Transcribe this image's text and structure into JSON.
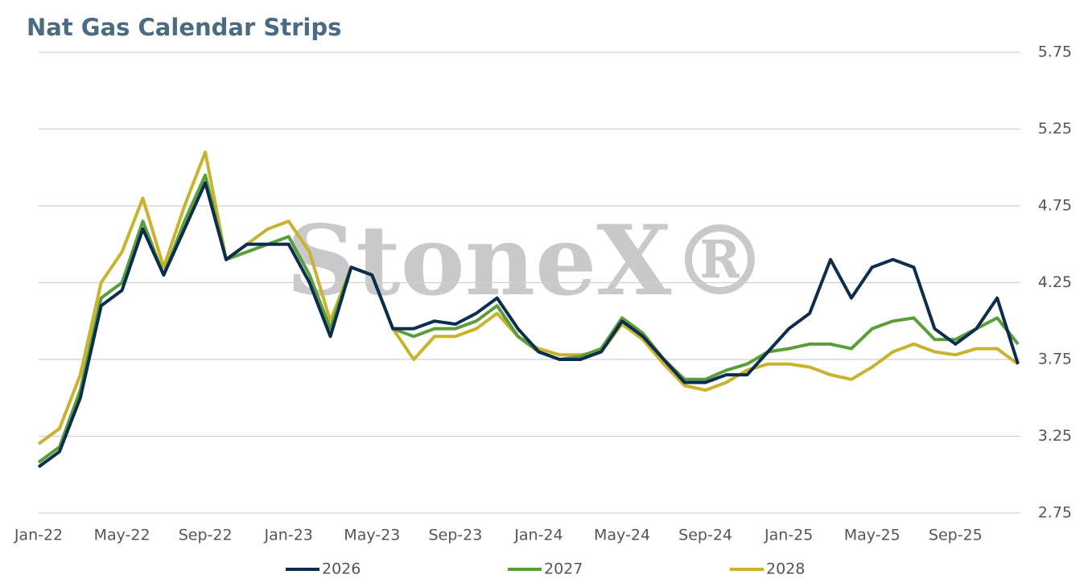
{
  "chart_data": {
    "type": "line",
    "title": "Nat Gas Calendar Strips",
    "watermark": "StoneX®",
    "categories": [
      "Jan-22",
      null,
      null,
      null,
      "May-22",
      null,
      null,
      null,
      "Sep-22",
      null,
      null,
      null,
      "Jan-23",
      null,
      null,
      null,
      "May-23",
      null,
      null,
      null,
      "Sep-23",
      null,
      null,
      null,
      "Jan-24",
      null,
      null,
      null,
      "May-24",
      null,
      null,
      null,
      "Sep-24",
      null,
      null,
      null,
      "Jan-25",
      null,
      null,
      null,
      "May-25",
      null,
      null,
      null,
      "Sep-25",
      null,
      null,
      null
    ],
    "series": [
      {
        "name": "2026",
        "color": "#0d2d4f",
        "values": [
          3.05,
          3.15,
          3.5,
          4.1,
          4.2,
          4.6,
          4.3,
          4.6,
          4.9,
          4.4,
          4.5,
          4.5,
          4.5,
          4.25,
          3.9,
          4.35,
          4.3,
          3.95,
          3.95,
          4.0,
          3.98,
          4.05,
          4.15,
          3.95,
          3.8,
          3.75,
          3.75,
          3.8,
          4.0,
          3.9,
          3.75,
          3.6,
          3.6,
          3.65,
          3.65,
          3.8,
          3.95,
          4.05,
          4.4,
          4.15,
          4.35,
          4.4,
          4.35,
          3.95,
          3.85,
          3.95,
          4.15,
          3.72
        ]
      },
      {
        "name": "2027",
        "color": "#5a9e3c",
        "values": [
          3.08,
          3.18,
          3.55,
          4.15,
          4.25,
          4.65,
          4.3,
          4.65,
          4.95,
          4.4,
          4.45,
          4.5,
          4.55,
          4.3,
          3.95,
          4.35,
          4.3,
          3.95,
          3.9,
          3.95,
          3.95,
          4.0,
          4.1,
          3.9,
          3.8,
          3.75,
          3.77,
          3.82,
          4.02,
          3.92,
          3.75,
          3.62,
          3.62,
          3.68,
          3.72,
          3.8,
          3.82,
          3.85,
          3.85,
          3.82,
          3.95,
          4.0,
          4.02,
          3.88,
          3.88,
          3.95,
          4.02,
          3.85
        ]
      },
      {
        "name": "2028",
        "color": "#c8b22e",
        "values": [
          3.2,
          3.3,
          3.65,
          4.25,
          4.45,
          4.8,
          4.35,
          4.75,
          5.1,
          4.4,
          4.5,
          4.6,
          4.65,
          4.45,
          4.0,
          4.35,
          4.3,
          3.95,
          3.75,
          3.9,
          3.9,
          3.95,
          4.05,
          3.9,
          3.82,
          3.78,
          3.78,
          3.8,
          3.98,
          3.88,
          3.72,
          3.58,
          3.55,
          3.6,
          3.68,
          3.72,
          3.72,
          3.7,
          3.65,
          3.62,
          3.7,
          3.8,
          3.85,
          3.8,
          3.78,
          3.82,
          3.82,
          3.72
        ]
      }
    ],
    "ylim": [
      2.75,
      5.75
    ],
    "yticks": [
      2.75,
      3.25,
      3.75,
      4.25,
      4.75,
      5.25,
      5.75
    ],
    "grid": true,
    "legend": "bottom"
  }
}
